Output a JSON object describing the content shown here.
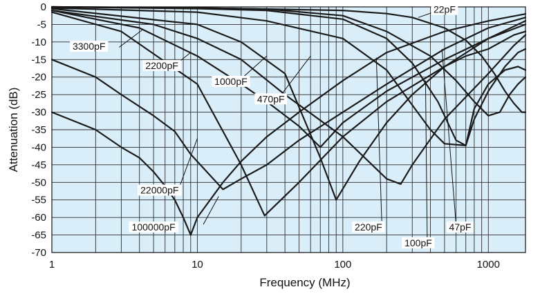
{
  "chart_data": {
    "type": "line",
    "title": "",
    "xlabel": "Frequency (MHz)",
    "ylabel": "Attenuation (dB)",
    "x_scale": "log",
    "xlim": [
      1,
      1800
    ],
    "ylim": [
      -70,
      0
    ],
    "x_ticks": [
      1,
      10,
      100,
      1000
    ],
    "y_ticks": [
      0,
      -5,
      -10,
      -15,
      -20,
      -25,
      -30,
      -35,
      -40,
      -45,
      -50,
      -55,
      -60,
      -65,
      -70
    ],
    "grid": true,
    "colors": {
      "plot_background": "#d9eef9",
      "curves": "#1a1a1a",
      "grid": "#2a2a2a"
    },
    "series": [
      {
        "name": "22pF",
        "x": [
          1,
          10,
          30,
          100,
          200,
          300,
          500,
          700,
          900,
          1100,
          1300,
          1500,
          1700,
          1800
        ],
        "y": [
          0,
          -0.3,
          -0.6,
          -1,
          -1.9,
          -3,
          -6,
          -9.5,
          -14,
          -19,
          -24,
          -27.5,
          -30,
          -30
        ]
      },
      {
        "name": "47pF",
        "x": [
          1,
          10,
          30,
          100,
          200,
          400,
          600,
          800,
          1000,
          1200,
          1400,
          1600,
          1800
        ],
        "y": [
          0,
          -0.3,
          -0.6,
          -2.5,
          -7,
          -14,
          -21,
          -27,
          -31,
          -30,
          -25,
          -22,
          -20
        ]
      },
      {
        "name": "100pF",
        "x": [
          1,
          10,
          30,
          100,
          200,
          300,
          450,
          600,
          700,
          800,
          1000,
          1300,
          1600,
          1800
        ],
        "y": [
          0,
          -0.5,
          -1,
          -3.5,
          -9,
          -16,
          -27,
          -38,
          -39.5,
          -29,
          -22,
          -18,
          -17,
          -18
        ]
      },
      {
        "name": "220pF",
        "x": [
          1,
          10,
          30,
          100,
          200,
          300,
          400,
          500,
          700,
          800,
          1000,
          1300,
          1600,
          1800
        ],
        "y": [
          -0.3,
          -1.5,
          -4,
          -9,
          -18,
          -28,
          -35,
          -39,
          -39.5,
          -32,
          -24,
          -17,
          -13,
          -12
        ]
      },
      {
        "name": "470pF",
        "x": [
          1,
          10,
          20,
          40,
          70,
          90,
          130,
          200,
          300,
          500,
          700,
          1000,
          1500,
          1800
        ],
        "y": [
          -0.5,
          -5,
          -10,
          -19,
          -43,
          -55,
          -44,
          -33,
          -25,
          -17,
          -14,
          -12,
          -8,
          -7
        ]
      },
      {
        "name": "1000pF",
        "x": [
          1,
          5,
          10,
          20,
          40,
          100,
          150,
          200,
          250,
          300,
          500,
          1000,
          1500,
          1800
        ],
        "y": [
          -1,
          -5,
          -9,
          -15,
          -25,
          -37,
          -44,
          -49,
          -50.5,
          -45,
          -32,
          -19,
          -11,
          -8
        ]
      },
      {
        "name": "2200pF",
        "x": [
          1,
          4,
          10,
          20,
          30,
          50,
          70,
          100,
          200,
          500,
          1000,
          1800
        ],
        "y": [
          -1,
          -6,
          -14,
          -22,
          -27,
          -34,
          -40,
          -33,
          -24,
          -15,
          -9,
          -4
        ]
      },
      {
        "name": "3300pF",
        "x": [
          1,
          3,
          10,
          20,
          29,
          50,
          100,
          200,
          500,
          1000,
          1800
        ],
        "y": [
          -1.5,
          -7,
          -22,
          -45,
          -59.5,
          -50,
          -37,
          -27,
          -17,
          -9,
          -5
        ]
      },
      {
        "name": "22000pF",
        "x": [
          1,
          2,
          3,
          5,
          7,
          9,
          15,
          20,
          30,
          50,
          100,
          200,
          500,
          1000,
          1800
        ],
        "y": [
          -15,
          -20,
          -25,
          -31,
          -35.5,
          -42,
          -52,
          -49,
          -45,
          -38,
          -30,
          -22,
          -12,
          -6,
          -3
        ]
      },
      {
        "name": "100000pF",
        "x": [
          1,
          2,
          3,
          4,
          5,
          6,
          7,
          8,
          9,
          10,
          15,
          20,
          30,
          50,
          100,
          200,
          500,
          1000,
          1800
        ],
        "y": [
          -30,
          -35,
          -40,
          -43,
          -47,
          -51,
          -55,
          -60,
          -65,
          -60,
          -50,
          -44,
          -37,
          -30,
          -21,
          -13,
          -7,
          -4,
          -2
        ]
      }
    ],
    "annotations": [
      {
        "text": "22pF",
        "data_x": 500,
        "data_y": -1.5
      },
      {
        "text": "3300pF",
        "data_x": 1.8,
        "data_y": -12
      },
      {
        "text": "2200pF",
        "data_x": 5.7,
        "data_y": -17.5
      },
      {
        "text": "1000pF",
        "data_x": 17,
        "data_y": -22
      },
      {
        "text": "470pF",
        "data_x": 32,
        "data_y": -27
      },
      {
        "text": "22000pF",
        "data_x": 5.5,
        "data_y": -53
      },
      {
        "text": "100000pF",
        "data_x": 5,
        "data_y": -63.5
      },
      {
        "text": "220pF",
        "data_x": 150,
        "data_y": -63.5
      },
      {
        "text": "100pF",
        "data_x": 330,
        "data_y": -68
      },
      {
        "text": "47pF",
        "data_x": 640,
        "data_y": -63.5
      }
    ]
  }
}
